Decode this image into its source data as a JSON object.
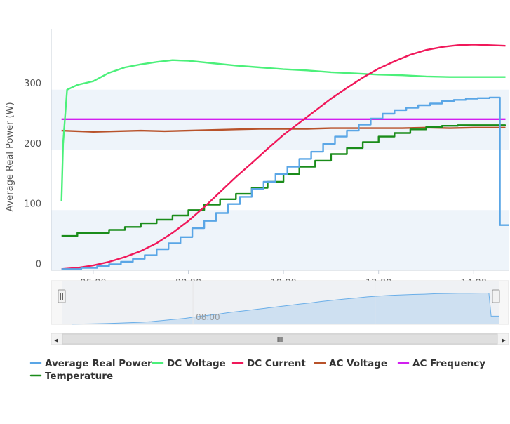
{
  "chart_data": {
    "type": "line",
    "title": "",
    "ylabel": "Average Real Power (W)",
    "xlabel": "",
    "x_unit": "time of day",
    "xlim": [
      "05:07",
      "14:44"
    ],
    "ylim": [
      -10,
      390
    ],
    "y_ticks": [
      0,
      100,
      200,
      300
    ],
    "x_ticks": [
      "06:00",
      "08:00",
      "10:00",
      "12:00",
      "14:00"
    ],
    "plot_bands": [
      [
        -10,
        90
      ],
      [
        190,
        290
      ]
    ],
    "legend_position": "bottom-left",
    "series": [
      {
        "name": "Average Real Power",
        "color": "#5aa6e6",
        "step": true,
        "points": [
          [
            "05:20",
            -8
          ],
          [
            "05:45",
            -6
          ],
          [
            "06:05",
            -3
          ],
          [
            "06:20",
            0
          ],
          [
            "06:35",
            4
          ],
          [
            "06:50",
            9
          ],
          [
            "07:05",
            15
          ],
          [
            "07:20",
            25
          ],
          [
            "07:35",
            35
          ],
          [
            "07:50",
            45
          ],
          [
            "08:05",
            60
          ],
          [
            "08:20",
            72
          ],
          [
            "08:35",
            85
          ],
          [
            "08:50",
            100
          ],
          [
            "09:05",
            112
          ],
          [
            "09:20",
            125
          ],
          [
            "09:35",
            137
          ],
          [
            "09:50",
            150
          ],
          [
            "10:05",
            162
          ],
          [
            "10:20",
            175
          ],
          [
            "10:35",
            187
          ],
          [
            "10:50",
            200
          ],
          [
            "11:05",
            212
          ],
          [
            "11:20",
            222
          ],
          [
            "11:35",
            232
          ],
          [
            "11:50",
            242
          ],
          [
            "12:05",
            250
          ],
          [
            "12:20",
            256
          ],
          [
            "12:35",
            260
          ],
          [
            "12:50",
            264
          ],
          [
            "13:05",
            267
          ],
          [
            "13:20",
            271
          ],
          [
            "13:35",
            273
          ],
          [
            "13:50",
            275
          ],
          [
            "14:05",
            276
          ],
          [
            "14:20",
            277
          ],
          [
            "14:30",
            277
          ],
          [
            "14:33",
            65
          ],
          [
            "14:44",
            65
          ]
        ]
      },
      {
        "name": "DC Voltage",
        "color": "#4bf07a",
        "step": false,
        "points": [
          [
            "05:20",
            105
          ],
          [
            "05:22",
            200
          ],
          [
            "05:27",
            290
          ],
          [
            "05:40",
            298
          ],
          [
            "06:00",
            304
          ],
          [
            "06:20",
            318
          ],
          [
            "06:40",
            327
          ],
          [
            "07:00",
            332
          ],
          [
            "07:20",
            336
          ],
          [
            "07:40",
            339
          ],
          [
            "08:00",
            338
          ],
          [
            "08:30",
            334
          ],
          [
            "09:00",
            330
          ],
          [
            "09:30",
            327
          ],
          [
            "10:00",
            324
          ],
          [
            "10:30",
            322
          ],
          [
            "11:00",
            319
          ],
          [
            "11:30",
            317
          ],
          [
            "12:00",
            315
          ],
          [
            "12:30",
            314
          ],
          [
            "13:00",
            312
          ],
          [
            "13:30",
            311
          ],
          [
            "14:00",
            311
          ],
          [
            "14:40",
            311
          ]
        ]
      },
      {
        "name": "DC Current",
        "color": "#f0185a",
        "step": false,
        "points": [
          [
            "05:20",
            -8
          ],
          [
            "05:40",
            -6
          ],
          [
            "06:00",
            -2
          ],
          [
            "06:20",
            4
          ],
          [
            "06:40",
            12
          ],
          [
            "07:00",
            22
          ],
          [
            "07:20",
            35
          ],
          [
            "07:40",
            52
          ],
          [
            "08:00",
            72
          ],
          [
            "08:20",
            95
          ],
          [
            "08:40",
            120
          ],
          [
            "09:00",
            145
          ],
          [
            "09:20",
            168
          ],
          [
            "09:40",
            192
          ],
          [
            "10:00",
            215
          ],
          [
            "10:20",
            235
          ],
          [
            "10:40",
            255
          ],
          [
            "11:00",
            275
          ],
          [
            "11:20",
            293
          ],
          [
            "11:40",
            310
          ],
          [
            "12:00",
            325
          ],
          [
            "12:20",
            337
          ],
          [
            "12:40",
            348
          ],
          [
            "13:00",
            356
          ],
          [
            "13:20",
            361
          ],
          [
            "13:40",
            364
          ],
          [
            "14:00",
            365
          ],
          [
            "14:20",
            364
          ],
          [
            "14:40",
            363
          ]
        ]
      },
      {
        "name": "AC Voltage",
        "color": "#b8522a",
        "step": false,
        "points": [
          [
            "05:20",
            222
          ],
          [
            "05:40",
            221
          ],
          [
            "06:00",
            220
          ],
          [
            "06:30",
            221
          ],
          [
            "07:00",
            222
          ],
          [
            "07:30",
            221
          ],
          [
            "08:00",
            222
          ],
          [
            "08:30",
            223
          ],
          [
            "09:00",
            224
          ],
          [
            "09:30",
            225
          ],
          [
            "10:00",
            225
          ],
          [
            "10:30",
            225
          ],
          [
            "11:00",
            226
          ],
          [
            "11:30",
            226
          ],
          [
            "12:00",
            226
          ],
          [
            "12:30",
            226
          ],
          [
            "13:00",
            227
          ],
          [
            "13:30",
            226
          ],
          [
            "14:00",
            227
          ],
          [
            "14:40",
            227
          ]
        ]
      },
      {
        "name": "AC Frequency",
        "color": "#d21ff0",
        "step": false,
        "points": [
          [
            "05:20",
            241
          ],
          [
            "14:40",
            241
          ]
        ]
      },
      {
        "name": "Temperature",
        "color": "#1a8c1a",
        "step": true,
        "points": [
          [
            "05:20",
            47
          ],
          [
            "05:40",
            52
          ],
          [
            "06:20",
            57
          ],
          [
            "06:40",
            62
          ],
          [
            "07:00",
            68
          ],
          [
            "07:20",
            74
          ],
          [
            "07:40",
            81
          ],
          [
            "08:00",
            90
          ],
          [
            "08:20",
            99
          ],
          [
            "08:40",
            108
          ],
          [
            "09:00",
            117
          ],
          [
            "09:20",
            127
          ],
          [
            "09:40",
            137
          ],
          [
            "10:00",
            150
          ],
          [
            "10:20",
            162
          ],
          [
            "10:40",
            172
          ],
          [
            "11:00",
            183
          ],
          [
            "11:20",
            193
          ],
          [
            "11:40",
            203
          ],
          [
            "12:00",
            212
          ],
          [
            "12:20",
            218
          ],
          [
            "12:40",
            224
          ],
          [
            "13:00",
            228
          ],
          [
            "13:20",
            230
          ],
          [
            "13:40",
            231
          ],
          [
            "14:00",
            231
          ],
          [
            "14:20",
            231
          ],
          [
            "14:40",
            232
          ]
        ]
      }
    ],
    "navigator": {
      "label": "08:00",
      "scroll_icon": "grip-icon",
      "left_arrow": "◂",
      "right_arrow": "▸"
    }
  }
}
